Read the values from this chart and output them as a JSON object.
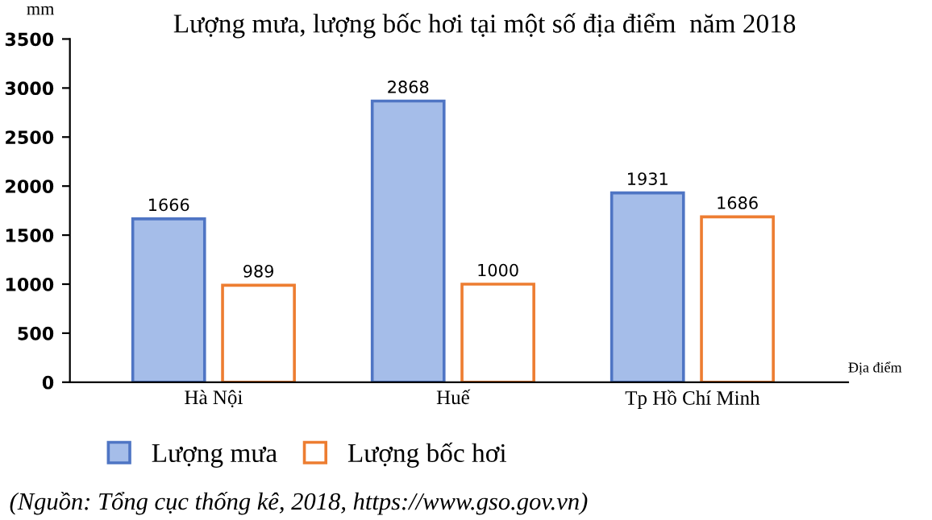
{
  "chart_data": {
    "type": "bar",
    "title": "Lượng mưa, lượng bốc hơi tại một số địa điểm  năm 2018",
    "ylabel": "mm",
    "xlabel": "Địa điểm",
    "categories": [
      "Hà Nội",
      "Huế",
      "Tp Hồ Chí Minh"
    ],
    "series": [
      {
        "name": "Lượng mưa",
        "color": "#a5bde9",
        "values": [
          1666,
          2868,
          1931
        ]
      },
      {
        "name": "Lượng bốc hơi",
        "color": "#ed7d31",
        "values": [
          989,
          1000,
          1686
        ]
      }
    ],
    "ylim": [
      0,
      3500
    ],
    "yticks": [
      0,
      500,
      1000,
      1500,
      2000,
      2500,
      3000,
      3500
    ],
    "data_labels": true,
    "grid": false,
    "legend": "bottom",
    "annotations": [
      "(Nguồn: Tổng cục thống kê, 2018, https://www.gso.gov.vn)"
    ]
  }
}
